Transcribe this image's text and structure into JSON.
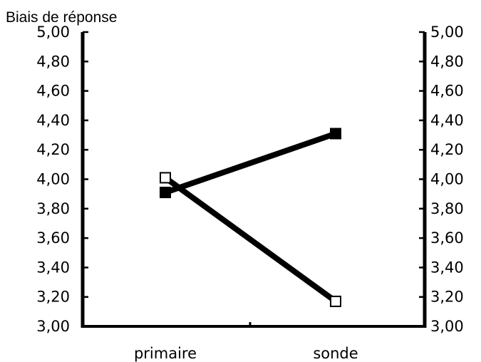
{
  "chart_data": {
    "type": "line",
    "title": "",
    "ylabel": "Biais de réponse",
    "xlabel": "",
    "categories": [
      "primaire",
      "sonde"
    ],
    "ylim": [
      3.0,
      5.0
    ],
    "yticks": [
      "3,00",
      "3,20",
      "3,40",
      "3,60",
      "3,80",
      "4,00",
      "4,20",
      "4,40",
      "4,60",
      "4,80",
      "5,00"
    ],
    "y_axis_right": true,
    "grid": false,
    "legend": "none",
    "series": [
      {
        "marker": "filled-square",
        "values": [
          3.91,
          4.31
        ],
        "color": "#000000"
      },
      {
        "marker": "open-square",
        "values": [
          4.01,
          3.17
        ],
        "color": "#000000"
      }
    ]
  }
}
